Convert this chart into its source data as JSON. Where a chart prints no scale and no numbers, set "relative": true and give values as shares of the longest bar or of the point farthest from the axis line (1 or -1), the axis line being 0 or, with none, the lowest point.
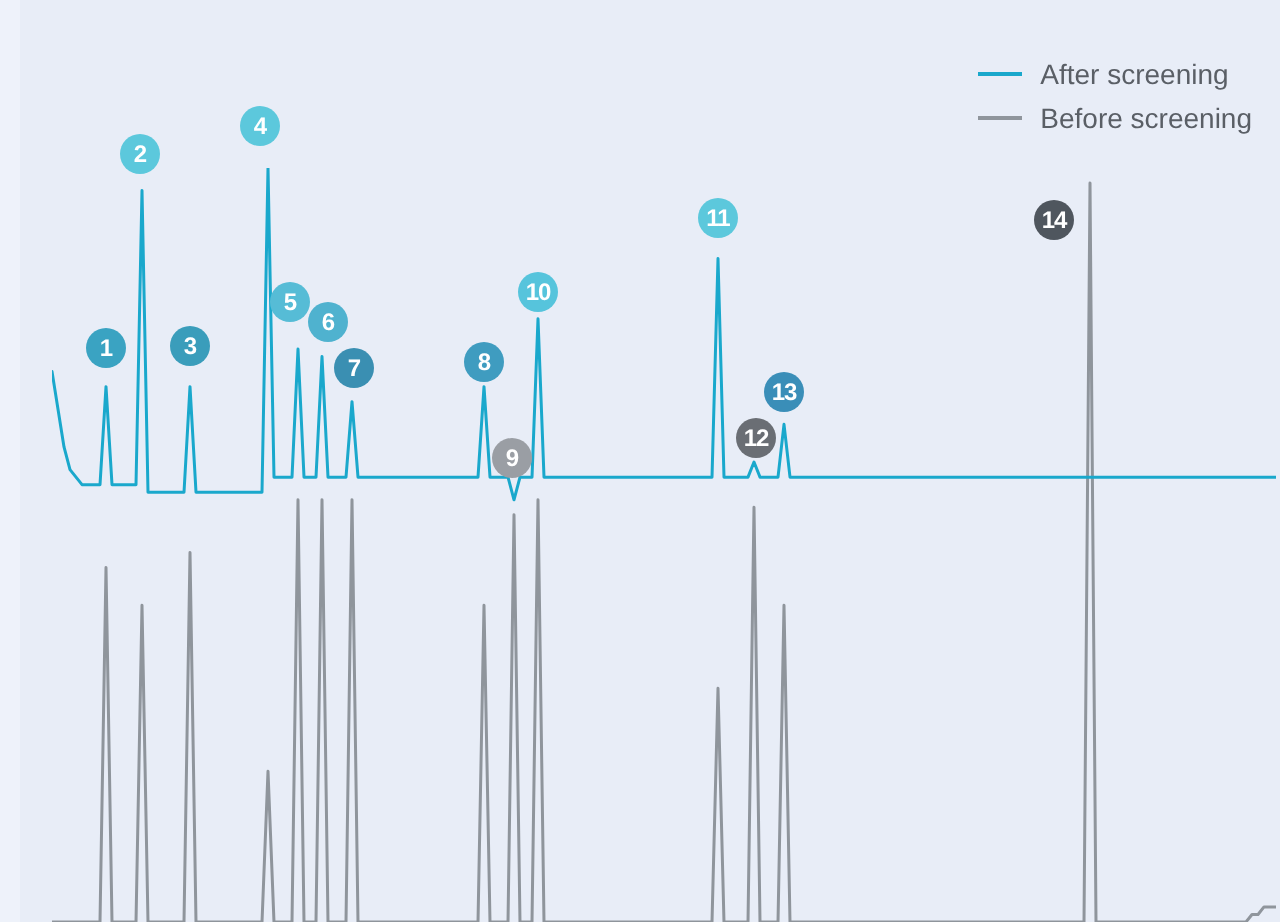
{
  "chart_data": {
    "type": "line",
    "relative": true,
    "legend": "top right",
    "categories": [
      null,
      null,
      null,
      null,
      null,
      null,
      null,
      null,
      null,
      null,
      null,
      null,
      null,
      null,
      null,
      null,
      null,
      null,
      null,
      null,
      null,
      null,
      null,
      null,
      null,
      null,
      null,
      null,
      null,
      null,
      null,
      null,
      null,
      null,
      null,
      null,
      null,
      null,
      null,
      null,
      null,
      null,
      null,
      null,
      null,
      null,
      null,
      null,
      null,
      null,
      null,
      null,
      null,
      null,
      null,
      null,
      null,
      null,
      null,
      null,
      null,
      null,
      null,
      null,
      null,
      null,
      null,
      null,
      null,
      null,
      null,
      null,
      null,
      null,
      null,
      null,
      null,
      null,
      null,
      null,
      null,
      null,
      null,
      null,
      null,
      null,
      null,
      null,
      null,
      null,
      null,
      null,
      null,
      null,
      null,
      null,
      null,
      null,
      null,
      null,
      null,
      null,
      null,
      null,
      null,
      null,
      null,
      null,
      null,
      null,
      null,
      null,
      null,
      null,
      null,
      null,
      null,
      null,
      null,
      null,
      null,
      null,
      null,
      null,
      null,
      null,
      null,
      null,
      null,
      null,
      null,
      null,
      null,
      null,
      null,
      null,
      null,
      null,
      null,
      null,
      null,
      null,
      null,
      null,
      null,
      null,
      null,
      null,
      null,
      null,
      null,
      null,
      null,
      null,
      null,
      null,
      null,
      null,
      null,
      null,
      null,
      null,
      null,
      null,
      null,
      null,
      null,
      null,
      null,
      null,
      null,
      null,
      null,
      null,
      null,
      null,
      null,
      null,
      null,
      null,
      null,
      null,
      null,
      null,
      null,
      null,
      null,
      null,
      null,
      null,
      null,
      null,
      null,
      null,
      null,
      null,
      null,
      null,
      null,
      null,
      null,
      null,
      null,
      null,
      null
    ],
    "series": [
      {
        "name": "After screening",
        "color": "#1aa8cc",
        "values": [
          0.73,
          0.68,
          0.63,
          0.6,
          0.59,
          0.58,
          0.58,
          0.58,
          0.58,
          0.71,
          0.58,
          0.58,
          0.58,
          0.58,
          0.58,
          0.97,
          0.57,
          0.57,
          0.57,
          0.57,
          0.57,
          0.57,
          0.57,
          0.71,
          0.57,
          0.57,
          0.57,
          0.57,
          0.57,
          0.57,
          0.57,
          0.57,
          0.57,
          0.57,
          0.57,
          0.57,
          1,
          0.59,
          0.59,
          0.59,
          0.59,
          0.76,
          0.59,
          0.59,
          0.59,
          0.75,
          0.59,
          0.59,
          0.59,
          0.59,
          0.69,
          0.59,
          0.59,
          0.59,
          0.59,
          0.59,
          0.59,
          0.59,
          0.59,
          0.59,
          0.59,
          0.59,
          0.59,
          0.59,
          0.59,
          0.59,
          0.59,
          0.59,
          0.59,
          0.59,
          0.59,
          0.59,
          0.71,
          0.59,
          0.59,
          0.59,
          0.59,
          0.56,
          0.59,
          0.59,
          0.59,
          0.8,
          0.59,
          0.59,
          0.59,
          0.59,
          0.59,
          0.59,
          0.59,
          0.59,
          0.59,
          0.59,
          0.59,
          0.59,
          0.59,
          0.59,
          0.59,
          0.59,
          0.59,
          0.59,
          0.59,
          0.59,
          0.59,
          0.59,
          0.59,
          0.59,
          0.59,
          0.59,
          0.59,
          0.59,
          0.59,
          0.88,
          0.59,
          0.59,
          0.59,
          0.59,
          0.59,
          0.61,
          0.59,
          0.59,
          0.59,
          0.59,
          0.66,
          0.59,
          0.59,
          0.59,
          0.59,
          0.59,
          0.59,
          0.59,
          0.59,
          0.59,
          0.59,
          0.59,
          0.59,
          0.59,
          0.59,
          0.59,
          0.59,
          0.59,
          0.59,
          0.59,
          0.59,
          0.59,
          0.59,
          0.59,
          0.59,
          0.59,
          0.59,
          0.59,
          0.59,
          0.59,
          0.59,
          0.59,
          0.59,
          0.59,
          0.59,
          0.59,
          0.59,
          0.59,
          0.59,
          0.59,
          0.59,
          0.59,
          0.59,
          0.59,
          0.59,
          0.59,
          0.59,
          0.59,
          0.59,
          0.59,
          0.59,
          0.59,
          0.59,
          0.59,
          0.59,
          0.59,
          0.59,
          0.59,
          0.59,
          0.59,
          0.59,
          0.59,
          0.59,
          0.59,
          0.59,
          0.59,
          0.59,
          0.59,
          0.59,
          0.59,
          0.59,
          0.59,
          0.59,
          0.59,
          0.59,
          0.59,
          0.59,
          0.59,
          0.59,
          0.59,
          0.59,
          0.59,
          0.59
        ]
      },
      {
        "name": "Before screening",
        "color": "#8f959c",
        "values": [
          0,
          0,
          0,
          0,
          0,
          0,
          0,
          0,
          0,
          0.47,
          0,
          0,
          0,
          0,
          0,
          0.42,
          0,
          0,
          0,
          0,
          0,
          0,
          0,
          0.49,
          0,
          0,
          0,
          0,
          0,
          0,
          0,
          0,
          0,
          0,
          0,
          0,
          0.2,
          0,
          0,
          0,
          0,
          0.56,
          0,
          0,
          0,
          0.56,
          0,
          0,
          0,
          0,
          0.56,
          0,
          0,
          0,
          0,
          0,
          0,
          0,
          0,
          0,
          0,
          0,
          0,
          0,
          0,
          0,
          0,
          0,
          0,
          0,
          0,
          0,
          0.42,
          0,
          0,
          0,
          0,
          0.54,
          0,
          0,
          0,
          0.56,
          0,
          0,
          0,
          0,
          0,
          0,
          0,
          0,
          0,
          0,
          0,
          0,
          0,
          0,
          0,
          0,
          0,
          0,
          0,
          0,
          0,
          0,
          0,
          0,
          0,
          0,
          0,
          0,
          0,
          0.31,
          0,
          0,
          0,
          0,
          0,
          0.55,
          0,
          0,
          0,
          0,
          0.42,
          0,
          0,
          0,
          0,
          0,
          0,
          0,
          0,
          0,
          0,
          0,
          0,
          0,
          0,
          0,
          0,
          0,
          0,
          0,
          0,
          0,
          0,
          0,
          0,
          0,
          0,
          0,
          0,
          0,
          0,
          0,
          0,
          0,
          0,
          0,
          0,
          0,
          0,
          0,
          0,
          0,
          0,
          0,
          0,
          0,
          0,
          0,
          0,
          0,
          0,
          0.98,
          0,
          0,
          0,
          0,
          0,
          0,
          0,
          0,
          0,
          0,
          0,
          0,
          0,
          0,
          0,
          0,
          0,
          0,
          0,
          0,
          0,
          0,
          0,
          0,
          0,
          0,
          0.01,
          0.01,
          0.02,
          0.02,
          0.02
        ]
      }
    ],
    "annotations": [
      "1",
      "2",
      "3",
      "4",
      "5",
      "6",
      "7",
      "8",
      "9",
      "10",
      "11",
      "12",
      "13",
      "14"
    ]
  }
}
